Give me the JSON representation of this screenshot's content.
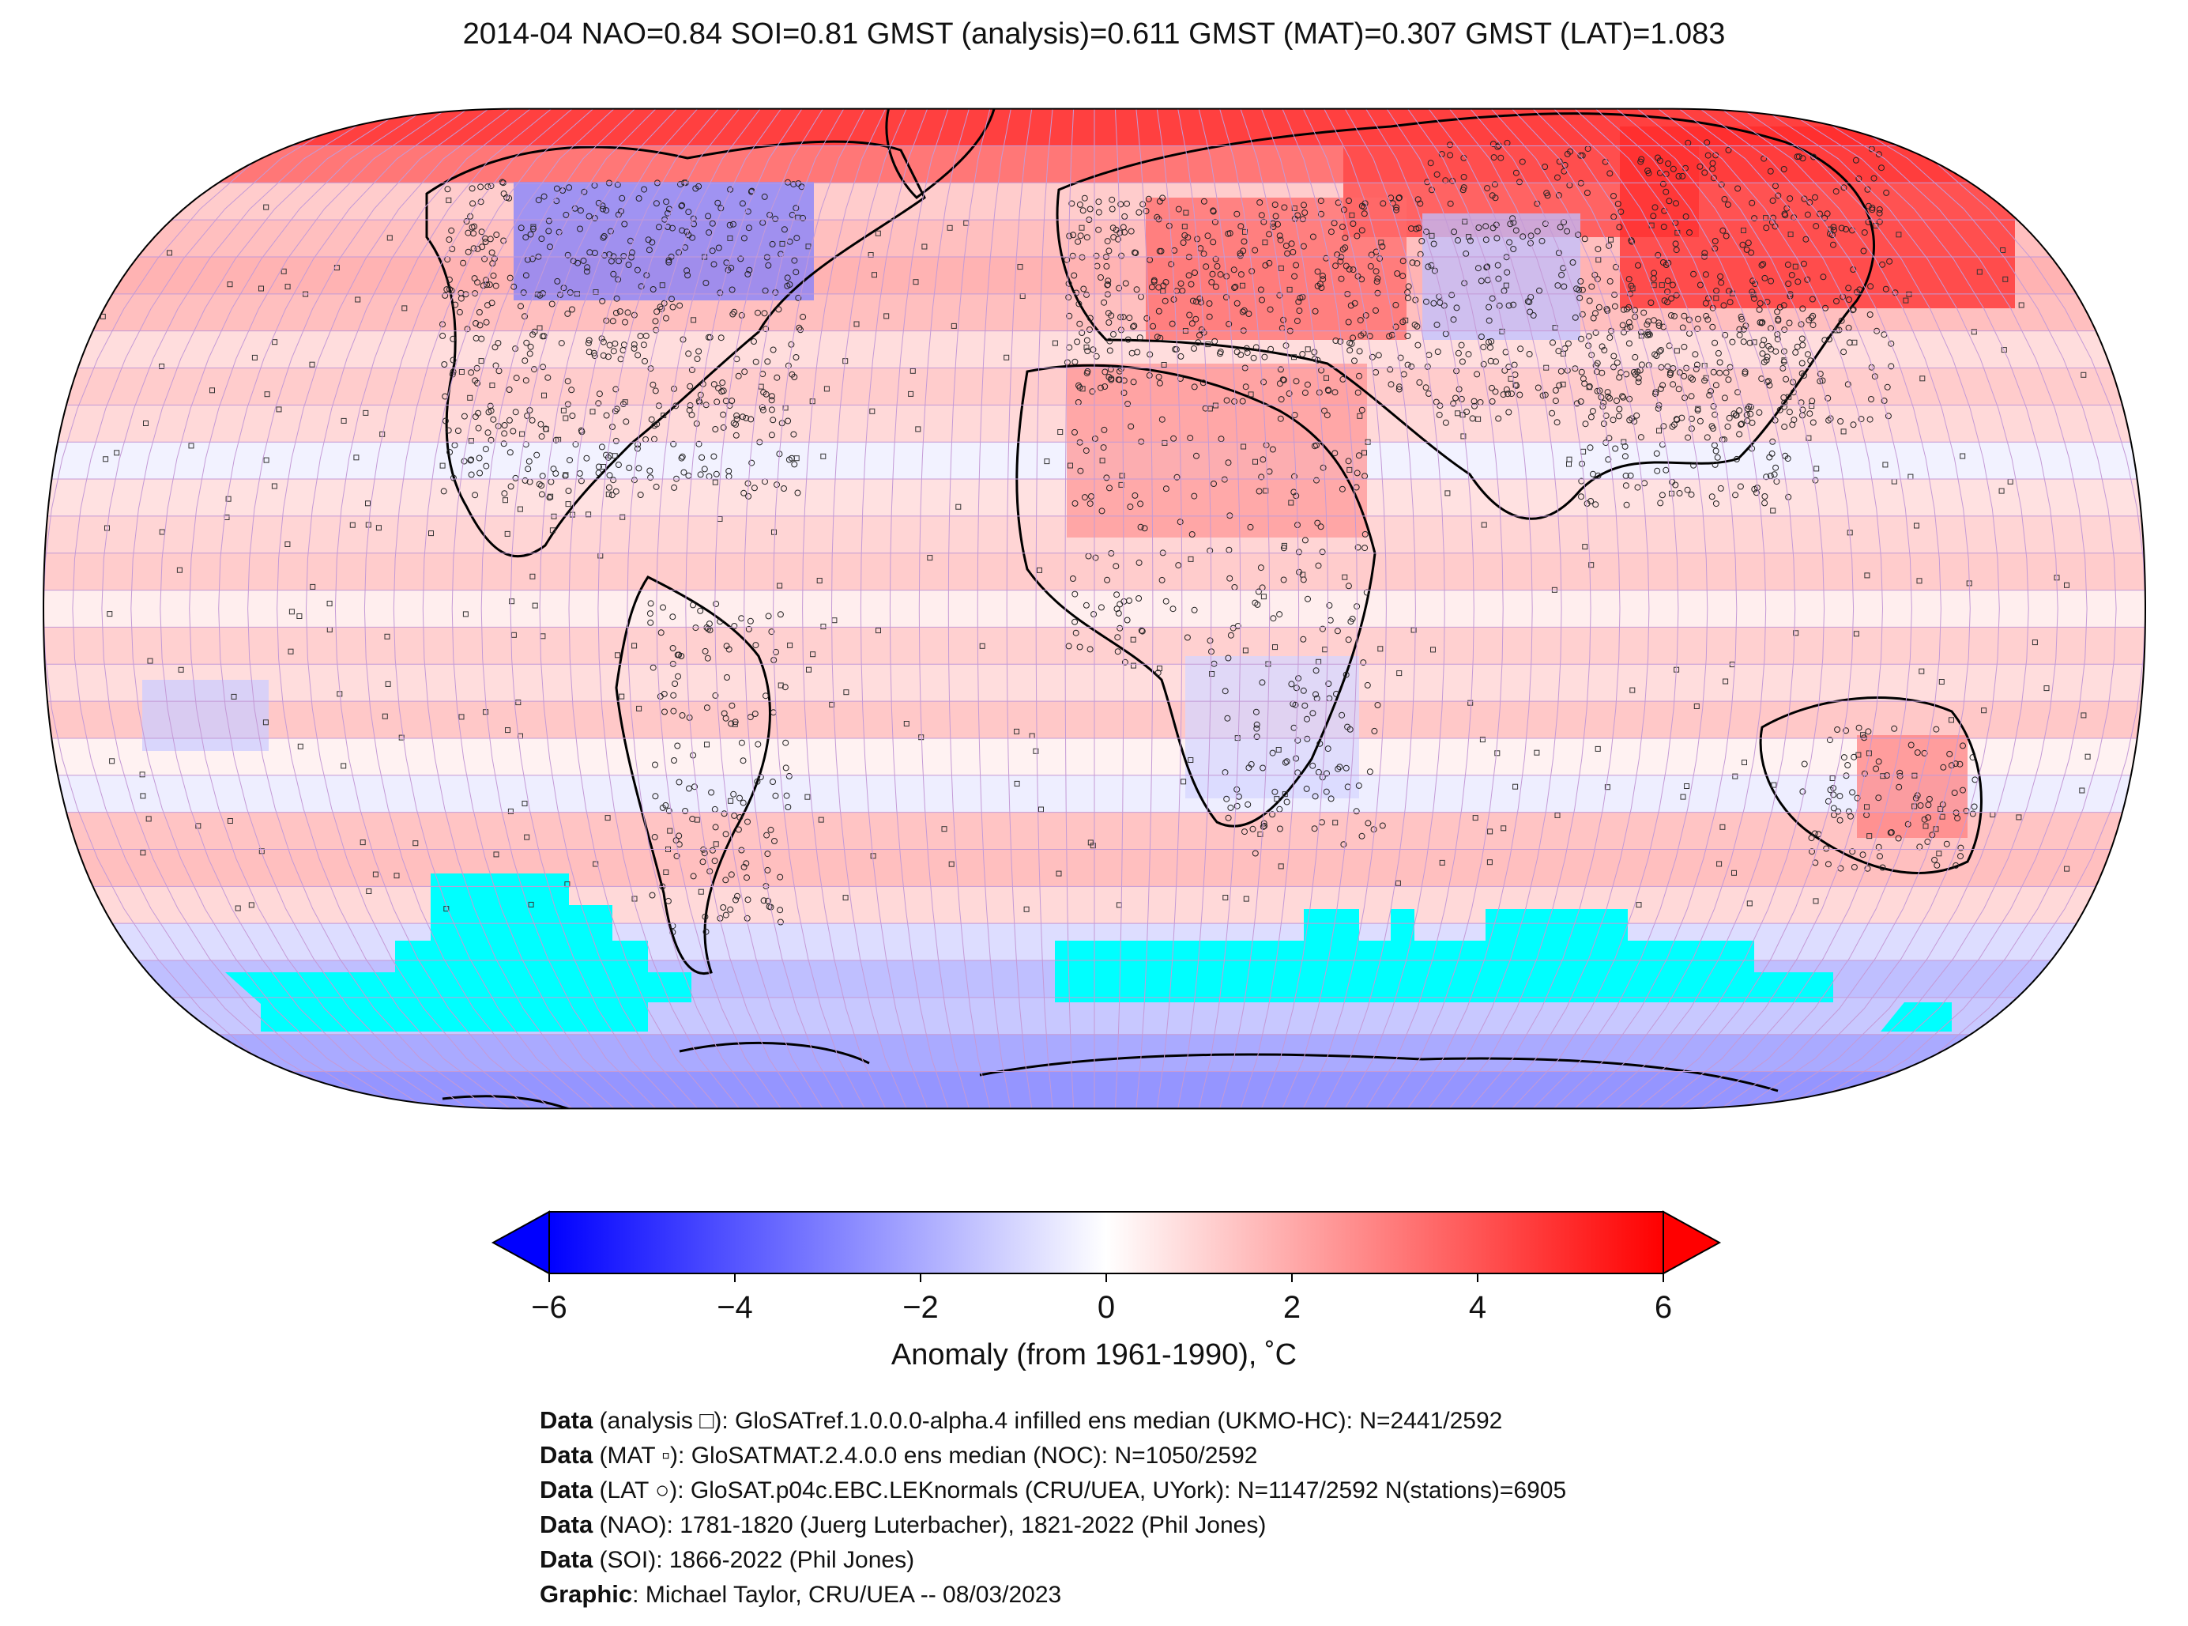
{
  "title": "2014-04 NAO=0.84 SOI=0.81 GMST (analysis)=0.611 GMST (MAT)=0.307 GMST (LAT)=1.083",
  "colorbar": {
    "label": "Anomaly (from 1961-1990), ˚C",
    "ticks": [
      "−6",
      "−4",
      "−2",
      "0",
      "2",
      "4",
      "6"
    ],
    "tick_values": [
      -6,
      -4,
      -2,
      0,
      2,
      4,
      6
    ],
    "range": [
      -6,
      6
    ],
    "extend": "both",
    "colors": {
      "min": "#0000ff",
      "mid": "#ffffff",
      "max": "#ff0000"
    }
  },
  "map": {
    "projection": "Robinson",
    "grid_color": "#c49ad6",
    "missing_color": "#00ffff",
    "coastline_color": "#000000",
    "markers": {
      "analysis": "square",
      "mat": "small square",
      "lat": "circle"
    }
  },
  "credits": [
    {
      "bold": "Data",
      "text": " (analysis □): GloSATref.1.0.0.0-alpha.4 infilled ens median (UKMO-HC): N=2441/2592"
    },
    {
      "bold": "Data",
      "text": " (MAT ▫): GloSATMAT.2.4.0.0 ens median (NOC): N=1050/2592"
    },
    {
      "bold": "Data",
      "text": " (LAT ○): GloSAT.p04c.EBC.LEKnormals (CRU/UEA, UYork): N=1147/2592 N(stations)=6905"
    },
    {
      "bold": "Data",
      "text": " (NAO): 1781-1820 (Juerg Luterbacher), 1821-2022 (Phil Jones)"
    },
    {
      "bold": "Data",
      "text": " (SOI): 1866-2022 (Phil Jones)"
    },
    {
      "bold": "Graphic",
      "text": ": Michael Taylor, CRU/UEA -- 08/03/2023"
    }
  ]
}
